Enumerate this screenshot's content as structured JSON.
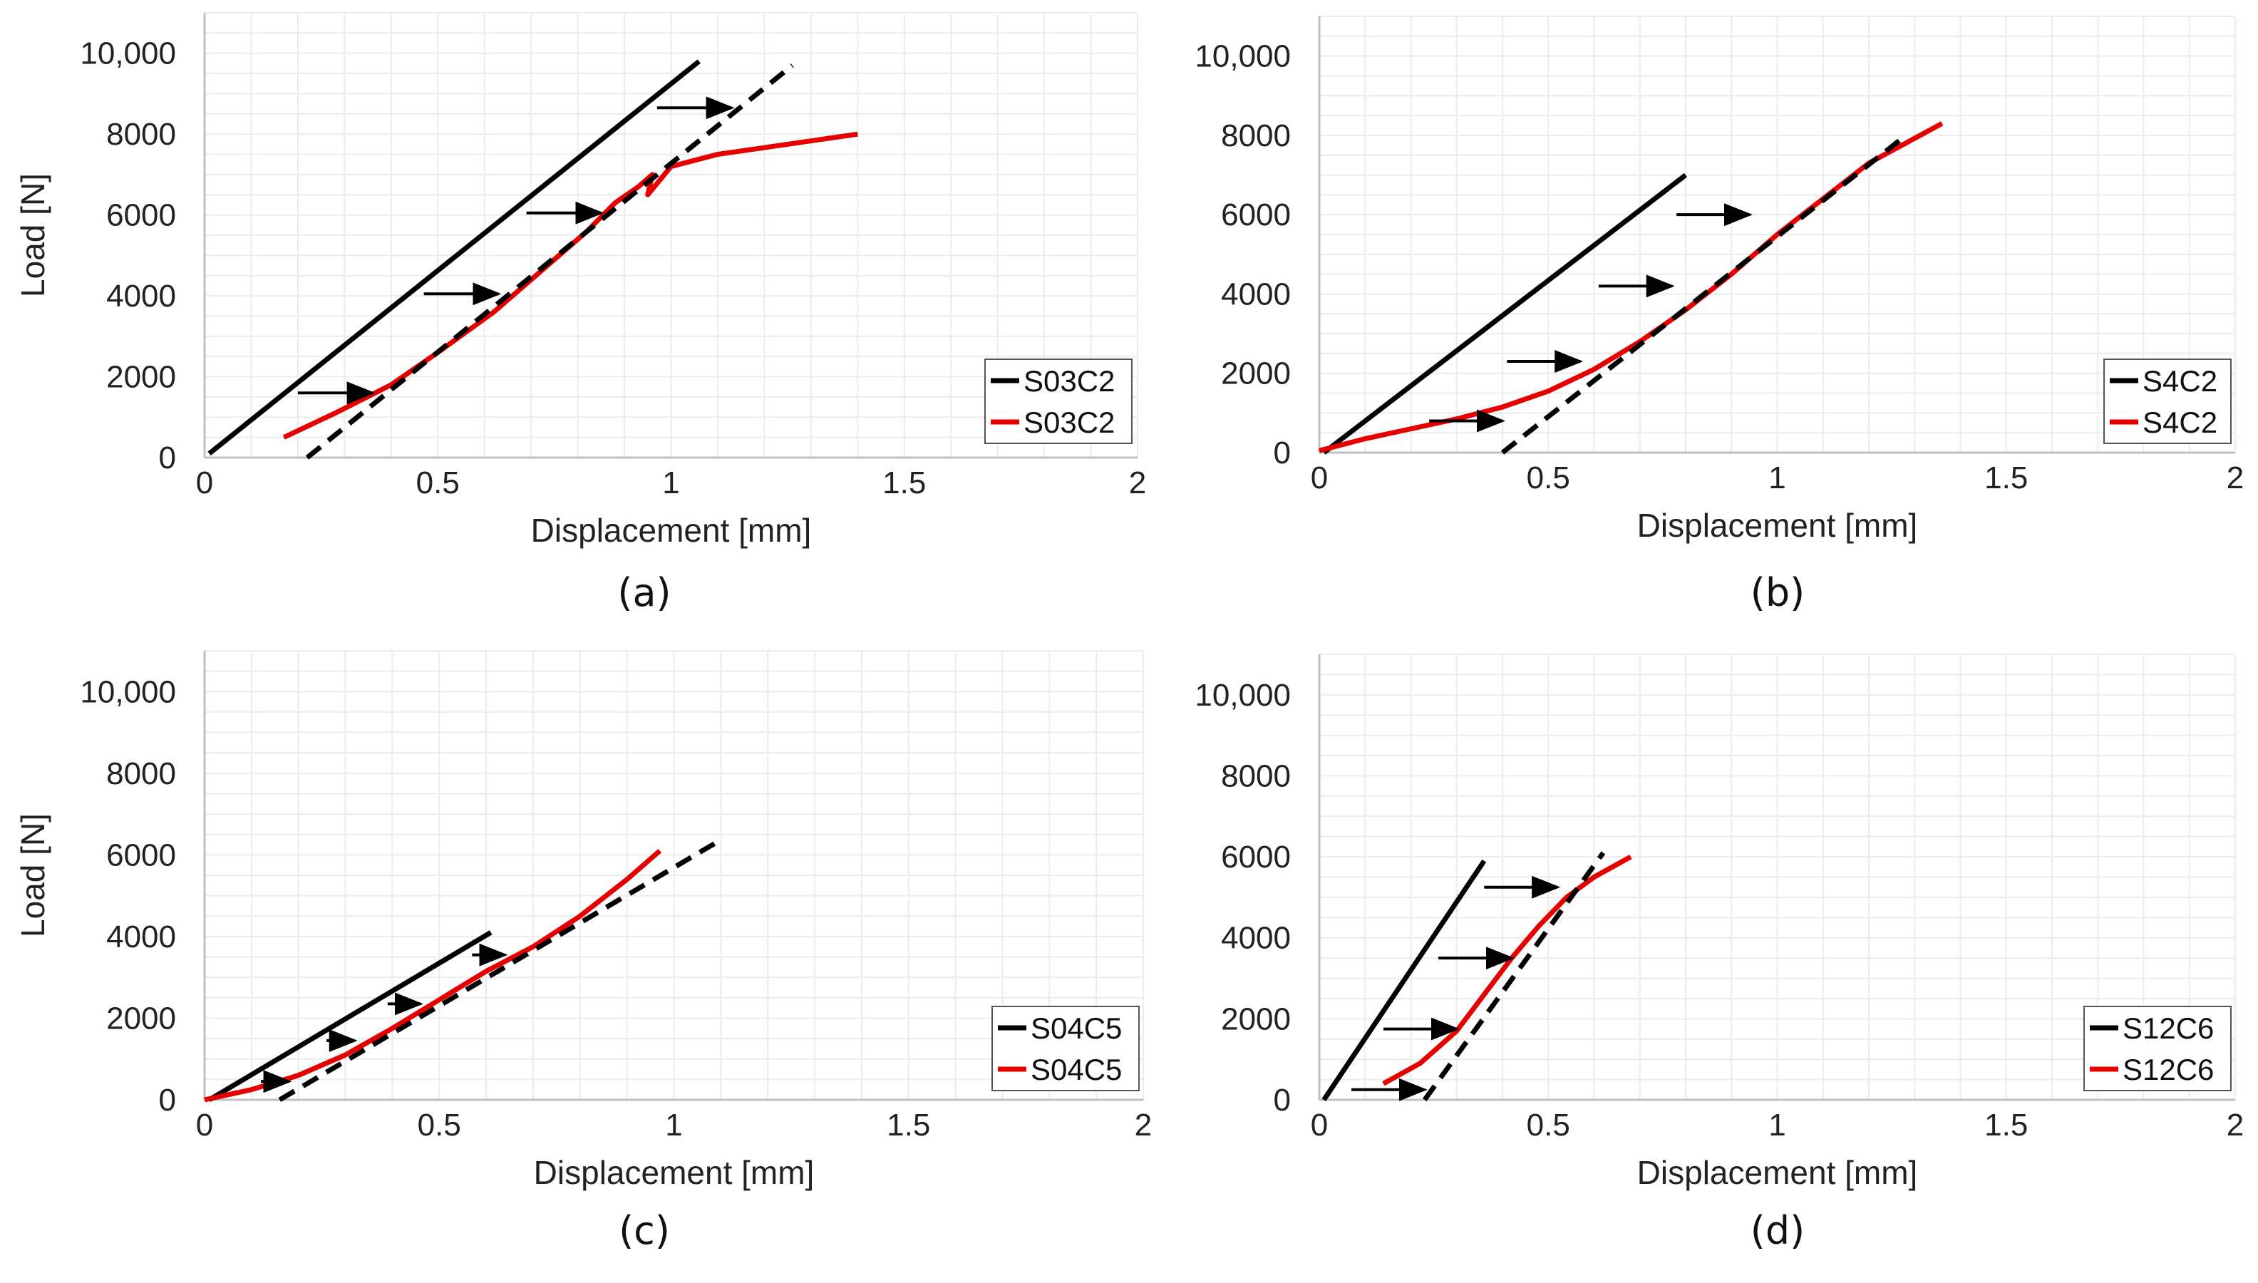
{
  "chart_data": [
    {
      "type": "line",
      "caption": "(a)",
      "xlabel": "Displacement [mm]",
      "ylabel": "Load [N]",
      "xlim": [
        0,
        2
      ],
      "ylim": [
        0,
        11000
      ],
      "xticks": [
        0,
        0.5,
        1,
        1.5,
        2
      ],
      "xtick_labels": [
        "0",
        "0.5",
        "1",
        "1.5",
        "2"
      ],
      "yticks": [
        0,
        2000,
        4000,
        6000,
        8000,
        10000
      ],
      "ytick_labels": [
        "0",
        "2000",
        "4000",
        "6000",
        "8000",
        "10,000"
      ],
      "grid": true,
      "legend_position": "bottom-right",
      "series": [
        {
          "name": "S03C2",
          "color": "#000000",
          "style": "solid",
          "x": [
            0.01,
            1.06
          ],
          "y": [
            100,
            9800
          ]
        },
        {
          "name": "S03C2",
          "color": "#e60000",
          "style": "solid",
          "x": [
            0.17,
            0.28,
            0.4,
            0.5,
            0.62,
            0.72,
            0.82,
            0.88,
            0.93,
            0.96,
            0.95,
            1.0,
            1.1,
            1.4
          ],
          "y": [
            500,
            1100,
            1800,
            2600,
            3600,
            4600,
            5600,
            6300,
            6700,
            7000,
            6500,
            7200,
            7500,
            8000
          ]
        },
        {
          "color": "#000000",
          "style": "dashed",
          "x": [
            0.22,
            1.26
          ],
          "y": [
            0,
            9700
          ]
        }
      ],
      "arrows": [
        {
          "x": [
            0.2,
            0.36
          ],
          "y": 1600
        },
        {
          "x": [
            0.47,
            0.63
          ],
          "y": 4050
        },
        {
          "x": [
            0.69,
            0.85
          ],
          "y": 6050
        },
        {
          "x": [
            0.97,
            1.13
          ],
          "y": 8650
        }
      ]
    },
    {
      "type": "line",
      "caption": "(b)",
      "xlabel": "Displacement [mm]",
      "ylabel": "",
      "xlim": [
        0,
        2
      ],
      "ylim": [
        0,
        11000
      ],
      "xticks": [
        0,
        0.5,
        1,
        1.5,
        2
      ],
      "xtick_labels": [
        "0",
        "0.5",
        "1",
        "1.5",
        "2"
      ],
      "yticks": [
        0,
        2000,
        4000,
        6000,
        8000,
        10000
      ],
      "ytick_labels": [
        "0",
        "2000",
        "4000",
        "6000",
        "8000",
        "10,000"
      ],
      "grid": true,
      "legend_position": "bottom-right",
      "series": [
        {
          "name": "S4C2",
          "color": "#000000",
          "style": "solid",
          "x": [
            0.01,
            0.8
          ],
          "y": [
            0,
            7000
          ]
        },
        {
          "name": "S4C2",
          "color": "#e60000",
          "style": "solid",
          "x": [
            0.0,
            0.1,
            0.2,
            0.3,
            0.4,
            0.5,
            0.6,
            0.7,
            0.8,
            0.9,
            1.0,
            1.1,
            1.2,
            1.36
          ],
          "y": [
            50,
            350,
            600,
            850,
            1150,
            1550,
            2100,
            2800,
            3600,
            4500,
            5500,
            6400,
            7300,
            8300
          ]
        },
        {
          "color": "#000000",
          "style": "dashed",
          "x": [
            0.4,
            1.27
          ],
          "y": [
            0,
            7900
          ]
        }
      ],
      "arrows": [
        {
          "x": [
            0.24,
            0.4
          ],
          "y": 800
        },
        {
          "x": [
            0.41,
            0.57
          ],
          "y": 2300
        },
        {
          "x": [
            0.61,
            0.77
          ],
          "y": 4200
        },
        {
          "x": [
            0.78,
            0.94
          ],
          "y": 6000
        }
      ]
    },
    {
      "type": "line",
      "caption": "(c)",
      "xlabel": "Displacement [mm]",
      "ylabel": "Load [N]",
      "xlim": [
        0,
        2
      ],
      "ylim": [
        0,
        11000
      ],
      "xticks": [
        0,
        0.5,
        1,
        1.5,
        2
      ],
      "xtick_labels": [
        "0",
        "0.5",
        "1",
        "1.5",
        "2"
      ],
      "yticks": [
        0,
        2000,
        4000,
        6000,
        8000,
        10000
      ],
      "ytick_labels": [
        "0",
        "2000",
        "4000",
        "6000",
        "8000",
        "10,000"
      ],
      "grid": true,
      "legend_position": "bottom-right",
      "series": [
        {
          "name": "S04C5",
          "color": "#000000",
          "style": "solid",
          "x": [
            0.01,
            0.61
          ],
          "y": [
            0,
            4100
          ]
        },
        {
          "name": "S04C5",
          "color": "#e60000",
          "style": "solid",
          "x": [
            0.0,
            0.1,
            0.2,
            0.3,
            0.4,
            0.5,
            0.6,
            0.7,
            0.8,
            0.9,
            0.97
          ],
          "y": [
            0,
            250,
            600,
            1100,
            1750,
            2450,
            3150,
            3750,
            4500,
            5400,
            6100
          ]
        },
        {
          "color": "#000000",
          "style": "dashed",
          "x": [
            0.16,
            1.09
          ],
          "y": [
            0,
            6300
          ]
        }
      ],
      "arrows": [
        {
          "x": [
            0.12,
            0.18
          ],
          "y": 450
        },
        {
          "x": [
            0.26,
            0.32
          ],
          "y": 1450
        },
        {
          "x": [
            0.39,
            0.46
          ],
          "y": 2350
        },
        {
          "x": [
            0.57,
            0.64
          ],
          "y": 3550
        }
      ]
    },
    {
      "type": "line",
      "caption": "(d)",
      "xlabel": "Displacement [mm]",
      "ylabel": "",
      "xlim": [
        0,
        2
      ],
      "ylim": [
        0,
        11000
      ],
      "xticks": [
        0,
        0.5,
        1,
        1.5,
        2
      ],
      "xtick_labels": [
        "0",
        "0.5",
        "1",
        "1.5",
        "2"
      ],
      "yticks": [
        0,
        2000,
        4000,
        6000,
        8000,
        10000
      ],
      "ytick_labels": [
        "0",
        "2000",
        "4000",
        "6000",
        "8000",
        "10,000"
      ],
      "grid": true,
      "legend_position": "bottom-right",
      "series": [
        {
          "name": "S12C6",
          "color": "#000000",
          "style": "solid",
          "x": [
            0.01,
            0.36
          ],
          "y": [
            0,
            5900
          ]
        },
        {
          "name": "S12C6",
          "color": "#e60000",
          "style": "solid",
          "x": [
            0.14,
            0.22,
            0.3,
            0.36,
            0.42,
            0.48,
            0.54,
            0.6,
            0.68
          ],
          "y": [
            400,
            900,
            1700,
            2600,
            3500,
            4300,
            5000,
            5500,
            6000
          ]
        },
        {
          "color": "#000000",
          "style": "dashed",
          "x": [
            0.23,
            0.62
          ],
          "y": [
            0,
            6100
          ]
        }
      ],
      "arrows": [
        {
          "x": [
            0.07,
            0.23
          ],
          "y": 250
        },
        {
          "x": [
            0.14,
            0.3
          ],
          "y": 1750
        },
        {
          "x": [
            0.26,
            0.42
          ],
          "y": 3500
        },
        {
          "x": [
            0.36,
            0.52
          ],
          "y": 5250
        }
      ]
    }
  ]
}
